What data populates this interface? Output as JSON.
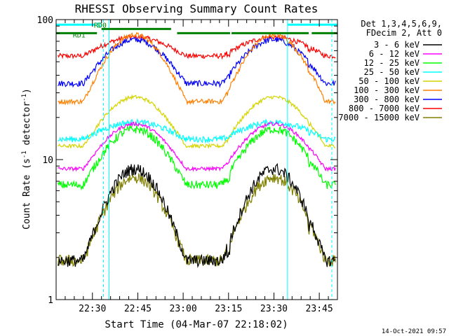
{
  "chart_data": {
    "type": "line",
    "title": "RHESSI Observing Summary Count Rates",
    "xlabel": "Start Time (04-Mar-07 22:18:02)",
    "ylabel": "Count Rate (s",
    "ylabel_sup": "-1",
    "ylabel_tail": " detector",
    "ylabel_end": ")",
    "y_scale": "log",
    "ylim": [
      1,
      100
    ],
    "xlim_minutes": [
      0,
      93
    ],
    "x_tick_labels": [
      "22:30",
      "22:45",
      "23:00",
      "23:15",
      "23:30",
      "23:45"
    ],
    "x_tick_minutes": [
      12,
      27,
      42,
      57,
      72,
      87
    ],
    "y_tick_labels": [
      "1",
      "10",
      "100"
    ],
    "y_tick_values": [
      1,
      10,
      100
    ],
    "legend_header": [
      "Det 1,3,4,5,6,9,",
      "FDecim 2, Att 0"
    ],
    "legend_position": "right",
    "night_markers_minutes": [
      0,
      17.5,
      76.5,
      93
    ],
    "saa_markers_minutes": [
      17.5,
      93
    ],
    "bar_labels": {
      "night": "N",
      "rd0": "RD0",
      "rd1": "RD1"
    },
    "series": [
      {
        "name": "3 - 6 keV",
        "color": "#000000",
        "base": 1.9,
        "peak": 8.6,
        "dip": 0.85,
        "noise": 0.1
      },
      {
        "name": "6 - 12 keV",
        "color": "#ff00ff",
        "base": 8.6,
        "peak": 18.0,
        "dip": 0.98,
        "noise": 0.03
      },
      {
        "name": "12 - 25 keV",
        "color": "#00ff00",
        "base": 6.6,
        "peak": 16.5,
        "dip": 0.92,
        "noise": 0.07
      },
      {
        "name": "25 - 50 keV",
        "color": "#00ffff",
        "base": 14.0,
        "peak": 18.5,
        "dip": 0.98,
        "noise": 0.05
      },
      {
        "name": "50 - 100 keV",
        "color": "#d4d400",
        "base": 12.5,
        "peak": 28.0,
        "dip": 0.97,
        "noise": 0.03
      },
      {
        "name": "100 - 300 keV",
        "color": "#ff8000",
        "base": 26.0,
        "peak": 78.0,
        "dip": 0.97,
        "noise": 0.04
      },
      {
        "name": "300 - 800 keV",
        "color": "#0000ff",
        "base": 35.0,
        "peak": 72.0,
        "dip": 0.97,
        "noise": 0.05
      },
      {
        "name": "800 - 7000 keV",
        "color": "#ff0000",
        "base": 55.0,
        "peak": 75.0,
        "dip": 0.93,
        "noise": 0.04
      },
      {
        "name": "7000 - 15000 keV",
        "color": "#808000",
        "base": 1.9,
        "peak": 7.5,
        "dip": 0.85,
        "noise": 0.1
      }
    ]
  },
  "timestamp": "14-Oct-2021 09:57"
}
